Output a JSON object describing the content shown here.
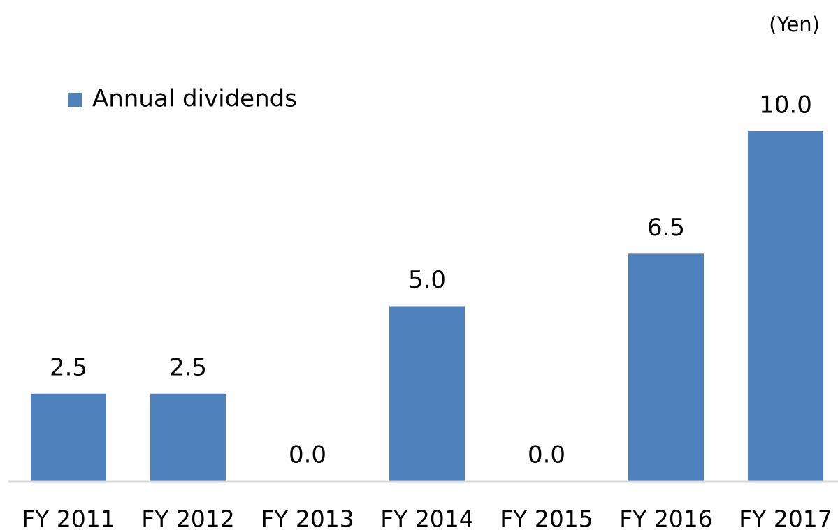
{
  "chart_data": {
    "type": "bar",
    "unit_label": "(Yen)",
    "categories": [
      "FY 2011",
      "FY 2012",
      "FY 2013",
      "FY 2014",
      "FY 2015",
      "FY 2016",
      "FY 2017"
    ],
    "series": [
      {
        "name": "Annual dividends",
        "color": "#4f81bd",
        "values": [
          2.5,
          2.5,
          0,
          5,
          0,
          6.5,
          10
        ],
        "value_labels": [
          "2.5",
          "2.5",
          "0.0",
          "5.0",
          "0.0",
          "6.5",
          "10.0"
        ]
      }
    ],
    "ylim": [
      0,
      10
    ],
    "legend": "top-left"
  }
}
